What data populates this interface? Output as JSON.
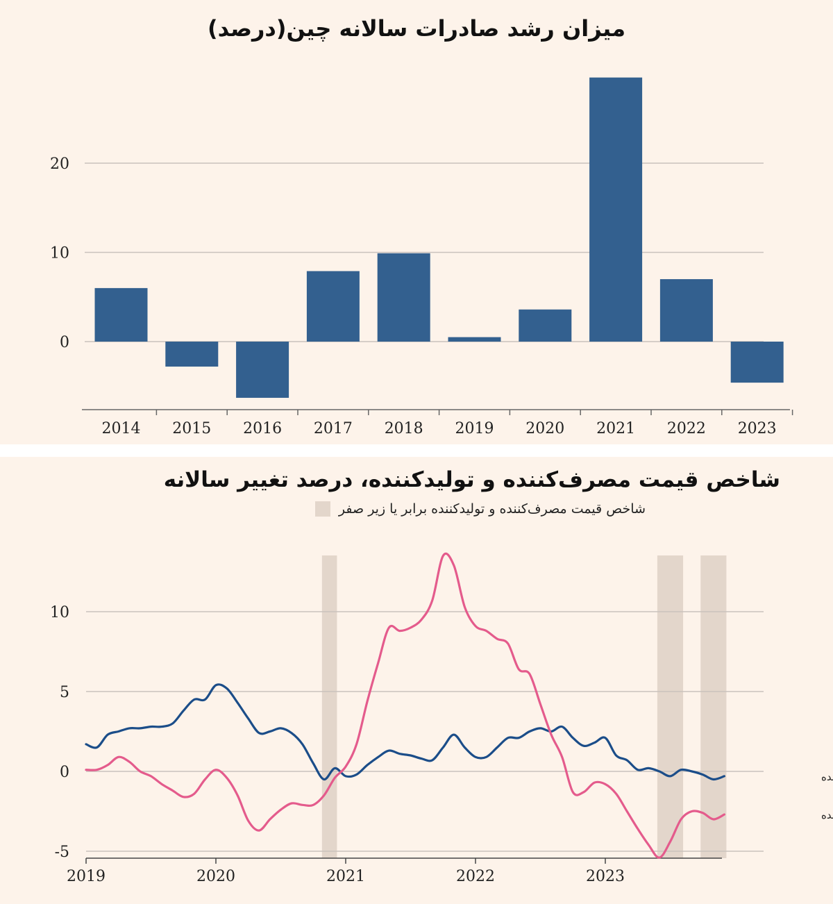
{
  "chart_data": [
    {
      "type": "bar",
      "title": "میزان رشد صادرات سالانه چین(درصد)",
      "categories": [
        "2014",
        "2015",
        "2016",
        "2017",
        "2018",
        "2019",
        "2020",
        "2021",
        "2022",
        "2023"
      ],
      "values": [
        6.0,
        -2.8,
        -6.3,
        7.9,
        9.9,
        0.5,
        3.6,
        29.6,
        7.0,
        -4.6
      ],
      "ylim": [
        -7.5,
        30
      ],
      "yticks": [
        "0",
        "10",
        "20"
      ],
      "grid": true,
      "bar_color": "#33608f",
      "gridline_color": "#c9c2bd"
    },
    {
      "type": "line",
      "title": "شاخص قیمت مصرف‌کننده و تولیدکننده، درصد تغییر سالانه",
      "legend_label": "شاخص قیمت مصرف‌کننده و تولیدکننده برابر یا زیر صفر",
      "shade_color": "#e3d6cb",
      "x_range": [
        "2019-01",
        "2023-12"
      ],
      "xticks": [
        "2019",
        "2020",
        "2021",
        "2022",
        "2023"
      ],
      "yticks": [
        "-5",
        "0",
        "5",
        "10"
      ],
      "ylim": [
        -5.4,
        13.5
      ],
      "grid": true,
      "shaded_periods": [
        [
          "2020-11",
          "2020-12"
        ],
        [
          "2023-06",
          "2023-08"
        ],
        [
          "2023-10",
          "2023-12"
        ]
      ],
      "series": [
        {
          "name": "قیمت مصرف‌کننده",
          "color": "#1b4d89",
          "x": [
            "2019-01",
            "2019-02",
            "2019-03",
            "2019-04",
            "2019-05",
            "2019-06",
            "2019-07",
            "2019-08",
            "2019-09",
            "2019-10",
            "2019-11",
            "2019-12",
            "2020-01",
            "2020-02",
            "2020-03",
            "2020-04",
            "2020-05",
            "2020-06",
            "2020-07",
            "2020-08",
            "2020-09",
            "2020-10",
            "2020-11",
            "2020-12",
            "2021-01",
            "2021-02",
            "2021-03",
            "2021-04",
            "2021-05",
            "2021-06",
            "2021-07",
            "2021-08",
            "2021-09",
            "2021-10",
            "2021-11",
            "2021-12",
            "2022-01",
            "2022-02",
            "2022-03",
            "2022-04",
            "2022-05",
            "2022-06",
            "2022-07",
            "2022-08",
            "2022-09",
            "2022-10",
            "2022-11",
            "2022-12",
            "2023-01",
            "2023-02",
            "2023-03",
            "2023-04",
            "2023-05",
            "2023-06",
            "2023-07",
            "2023-08",
            "2023-09",
            "2023-10",
            "2023-11",
            "2023-12"
          ],
          "values": [
            1.7,
            1.5,
            2.3,
            2.5,
            2.7,
            2.7,
            2.8,
            2.8,
            3.0,
            3.8,
            4.5,
            4.5,
            5.4,
            5.2,
            4.3,
            3.3,
            2.4,
            2.5,
            2.7,
            2.4,
            1.7,
            0.5,
            -0.5,
            0.2,
            -0.3,
            -0.2,
            0.4,
            0.9,
            1.3,
            1.1,
            1.0,
            0.8,
            0.7,
            1.5,
            2.3,
            1.5,
            0.9,
            0.9,
            1.5,
            2.1,
            2.1,
            2.5,
            2.7,
            2.5,
            2.8,
            2.1,
            1.6,
            1.8,
            2.1,
            1.0,
            0.7,
            0.1,
            0.2,
            0.0,
            -0.3,
            0.1,
            0.0,
            -0.2,
            -0.5,
            -0.3
          ]
        },
        {
          "name": "قیمت تولید کننده",
          "color": "#e45b8c",
          "x": [
            "2019-01",
            "2019-02",
            "2019-03",
            "2019-04",
            "2019-05",
            "2019-06",
            "2019-07",
            "2019-08",
            "2019-09",
            "2019-10",
            "2019-11",
            "2019-12",
            "2020-01",
            "2020-02",
            "2020-03",
            "2020-04",
            "2020-05",
            "2020-06",
            "2020-07",
            "2020-08",
            "2020-09",
            "2020-10",
            "2020-11",
            "2020-12",
            "2021-01",
            "2021-02",
            "2021-03",
            "2021-04",
            "2021-05",
            "2021-06",
            "2021-07",
            "2021-08",
            "2021-09",
            "2021-10",
            "2021-11",
            "2021-12",
            "2022-01",
            "2022-02",
            "2022-03",
            "2022-04",
            "2022-05",
            "2022-06",
            "2022-07",
            "2022-08",
            "2022-09",
            "2022-10",
            "2022-11",
            "2022-12",
            "2023-01",
            "2023-02",
            "2023-03",
            "2023-04",
            "2023-05",
            "2023-06",
            "2023-07",
            "2023-08",
            "2023-09",
            "2023-10",
            "2023-11",
            "2023-12"
          ],
          "values": [
            0.1,
            0.1,
            0.4,
            0.9,
            0.6,
            0.0,
            -0.3,
            -0.8,
            -1.2,
            -1.6,
            -1.4,
            -0.5,
            0.1,
            -0.4,
            -1.5,
            -3.1,
            -3.7,
            -3.0,
            -2.4,
            -2.0,
            -2.1,
            -2.1,
            -1.5,
            -0.4,
            0.3,
            1.7,
            4.4,
            6.8,
            9.0,
            8.8,
            9.0,
            9.5,
            10.7,
            13.5,
            12.9,
            10.3,
            9.1,
            8.8,
            8.3,
            8.0,
            6.4,
            6.1,
            4.2,
            2.3,
            0.9,
            -1.3,
            -1.3,
            -0.7,
            -0.8,
            -1.4,
            -2.5,
            -3.6,
            -4.6,
            -5.4,
            -4.4,
            -3.0,
            -2.5,
            -2.6,
            -3.0,
            -2.7
          ]
        }
      ]
    }
  ]
}
